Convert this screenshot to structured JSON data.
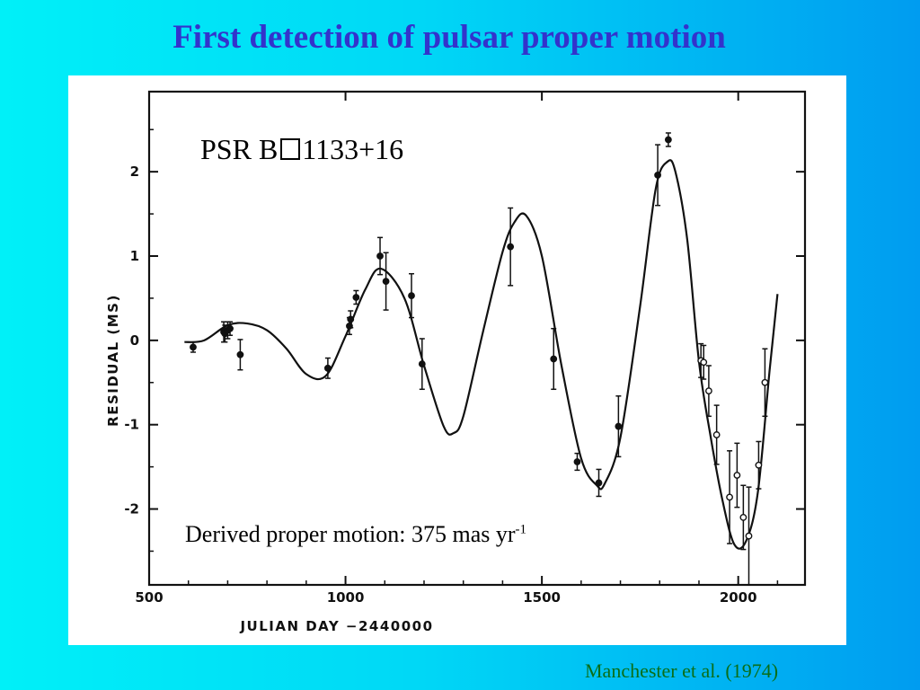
{
  "slide": {
    "title": "First detection of pulsar proper motion",
    "citation": "Manchester et al. (1974)"
  },
  "annotations": {
    "pulsar_prefix": "PSR B",
    "pulsar_suffix": "1133+16",
    "proper_motion_text": "Derived proper motion: 375 mas yr",
    "proper_motion_exponent": "-1"
  },
  "colors": {
    "title": "#3333cc",
    "citation": "#0a6e18"
  },
  "chart_data": {
    "type": "scatter",
    "title": "",
    "xlabel": "JULIAN  DAY  −2440000",
    "ylabel": "RESIDUAL  (MS)",
    "xlim": [
      500,
      2170
    ],
    "ylim": [
      -2.9,
      2.95
    ],
    "xticks": [
      500,
      1000,
      1500,
      2000
    ],
    "yticks": [
      -2,
      -1,
      0,
      1,
      2
    ],
    "grid": false,
    "points": [
      {
        "x": 612,
        "y": -0.08,
        "err": 0.06,
        "open": false
      },
      {
        "x": 690,
        "y": 0.1,
        "err": 0.12,
        "open": false
      },
      {
        "x": 693,
        "y": 0.08,
        "err": 0.1,
        "open": false
      },
      {
        "x": 700,
        "y": 0.12,
        "err": 0.1,
        "open": false
      },
      {
        "x": 706,
        "y": 0.14,
        "err": 0.08,
        "open": false
      },
      {
        "x": 732,
        "y": -0.17,
        "err": 0.18,
        "open": false
      },
      {
        "x": 955,
        "y": -0.33,
        "err": 0.12,
        "open": false
      },
      {
        "x": 1010,
        "y": 0.17,
        "err": 0.1,
        "open": false
      },
      {
        "x": 1013,
        "y": 0.25,
        "err": 0.1,
        "open": false
      },
      {
        "x": 1027,
        "y": 0.51,
        "err": 0.08,
        "open": false
      },
      {
        "x": 1088,
        "y": 1.0,
        "err": 0.22,
        "open": false
      },
      {
        "x": 1103,
        "y": 0.7,
        "err": 0.34,
        "open": false
      },
      {
        "x": 1168,
        "y": 0.53,
        "err": 0.26,
        "open": false
      },
      {
        "x": 1195,
        "y": -0.28,
        "err": 0.3,
        "open": false
      },
      {
        "x": 1420,
        "y": 1.11,
        "err": 0.46,
        "open": false
      },
      {
        "x": 1530,
        "y": -0.22,
        "err": 0.36,
        "open": false
      },
      {
        "x": 1590,
        "y": -1.44,
        "err": 0.1,
        "open": false
      },
      {
        "x": 1645,
        "y": -1.69,
        "err": 0.16,
        "open": false
      },
      {
        "x": 1695,
        "y": -1.02,
        "err": 0.36,
        "open": false
      },
      {
        "x": 1795,
        "y": 1.96,
        "err": 0.36,
        "open": false
      },
      {
        "x": 1822,
        "y": 2.38,
        "err": 0.08,
        "open": false
      },
      {
        "x": 1905,
        "y": -0.24,
        "err": 0.2,
        "open": true
      },
      {
        "x": 1912,
        "y": -0.26,
        "err": 0.2,
        "open": true
      },
      {
        "x": 1925,
        "y": -0.6,
        "err": 0.3,
        "open": true
      },
      {
        "x": 1945,
        "y": -1.12,
        "err": 0.35,
        "open": true
      },
      {
        "x": 1978,
        "y": -1.86,
        "err": 0.55,
        "open": true
      },
      {
        "x": 1997,
        "y": -1.6,
        "err": 0.38,
        "open": true
      },
      {
        "x": 2013,
        "y": -2.1,
        "err": 0.38,
        "open": true
      },
      {
        "x": 2027,
        "y": -2.32,
        "err": 0.58,
        "open": true
      },
      {
        "x": 2052,
        "y": -1.48,
        "err": 0.28,
        "open": true
      },
      {
        "x": 2068,
        "y": -0.5,
        "err": 0.4,
        "open": true
      }
    ],
    "fit_curve": {
      "x": [
        590,
        640,
        700,
        750,
        800,
        850,
        900,
        950,
        1000,
        1050,
        1090,
        1150,
        1200,
        1250,
        1275,
        1300,
        1350,
        1400,
        1430,
        1460,
        1500,
        1550,
        1600,
        1640,
        1660,
        1700,
        1750,
        1790,
        1820,
        1840,
        1870,
        1900,
        1930,
        1960,
        1990,
        2020,
        2050,
        2080,
        2100
      ],
      "y": [
        -0.02,
        0.0,
        0.18,
        0.2,
        0.12,
        -0.1,
        -0.4,
        -0.42,
        0.05,
        0.6,
        0.85,
        0.5,
        -0.3,
        -1.02,
        -1.1,
        -0.9,
        0.1,
        1.05,
        1.4,
        1.48,
        1.0,
        -0.3,
        -1.4,
        -1.72,
        -1.7,
        -1.15,
        0.4,
        1.8,
        2.12,
        2.0,
        1.2,
        -0.25,
        -1.15,
        -1.9,
        -2.42,
        -2.38,
        -1.8,
        -0.35,
        0.55
      ]
    }
  }
}
